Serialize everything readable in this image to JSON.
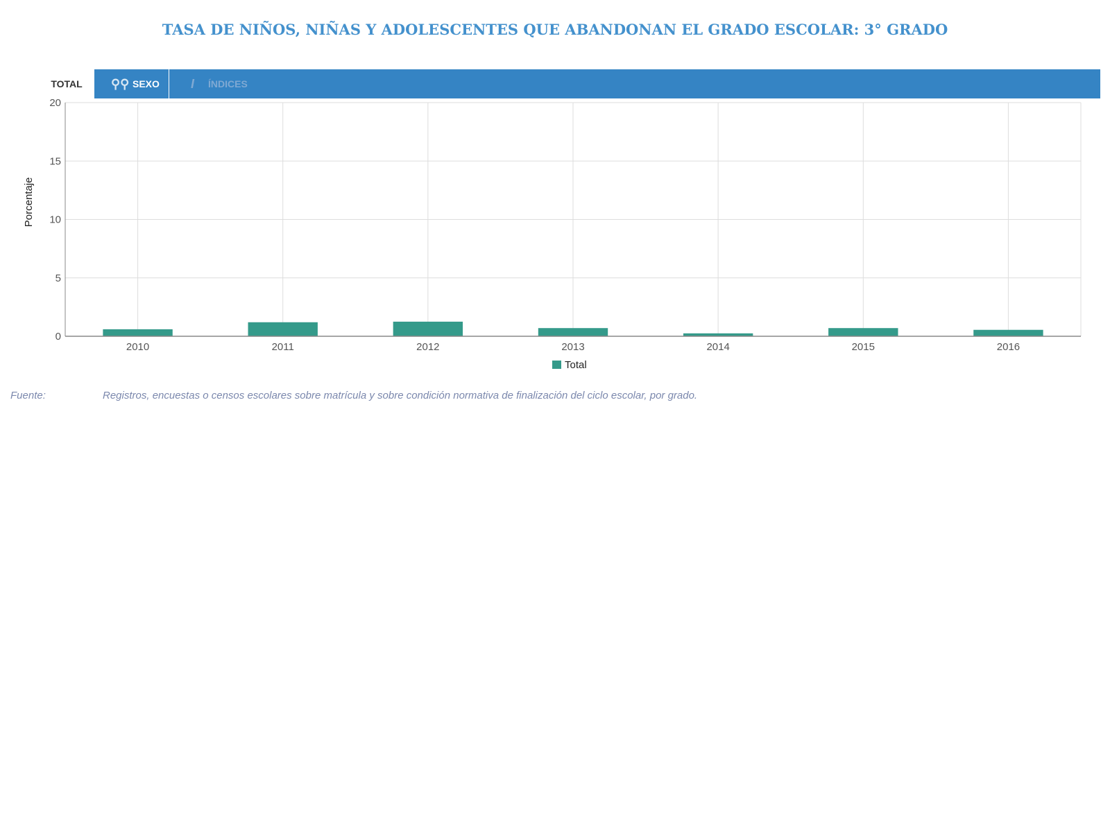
{
  "title": "TASA DE NIÑOS, NIÑAS Y ADOLESCENTES QUE ABANDONAN EL GRADO ESCOLAR: 3° GRADO",
  "colors": {
    "title": "#4491cd",
    "tabbar": "#3584c4",
    "bar": "#349a8a",
    "grid": "#dddddd",
    "axis": "#888888"
  },
  "tabs": {
    "total_label": "TOTAL",
    "sexo_label": "SEXO",
    "sexo_icon": "gender-icon",
    "indice_label": "ÍNDICES",
    "indice_icon": "index-icon"
  },
  "chart_data": {
    "type": "bar",
    "categories": [
      "2010",
      "2011",
      "2012",
      "2013",
      "2014",
      "2015",
      "2016"
    ],
    "series": [
      {
        "name": "Total",
        "values": [
          0.6,
          1.2,
          1.25,
          0.7,
          0.25,
          0.7,
          0.55
        ]
      }
    ],
    "ylabel": "Porcentaje",
    "xlabel": "",
    "ylim": [
      0,
      20
    ],
    "yticks": [
      0,
      5,
      10,
      15,
      20
    ],
    "grid": true,
    "legend_position": "bottom"
  },
  "source": {
    "label": "Fuente:",
    "text": "Registros, encuestas o censos escolares sobre matrícula y sobre condición normativa de finalización del ciclo escolar, por grado."
  }
}
